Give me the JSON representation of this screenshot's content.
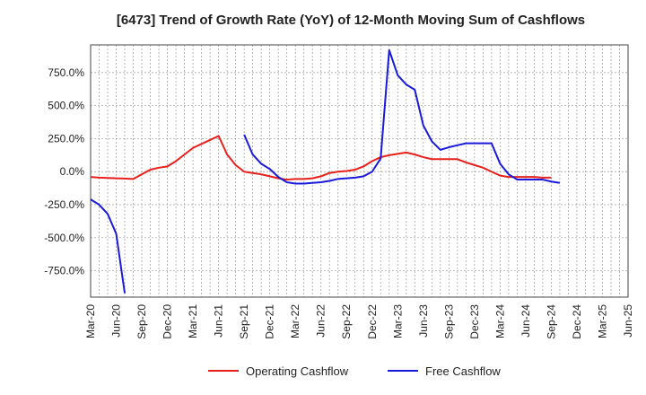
{
  "chart_data": {
    "type": "line",
    "title": "[6473]  Trend of Growth Rate (YoY) of 12-Month Moving Sum of Cashflows",
    "xlabel": "",
    "ylabel": "",
    "x_tick_labels": [
      "Mar-20",
      "Jun-20",
      "Sep-20",
      "Dec-20",
      "Mar-21",
      "Jun-21",
      "Sep-21",
      "Dec-21",
      "Mar-22",
      "Jun-22",
      "Sep-22",
      "Dec-22",
      "Mar-23",
      "Jun-23",
      "Sep-23",
      "Dec-23",
      "Mar-24",
      "Jun-24",
      "Sep-24",
      "Dec-24",
      "Mar-25",
      "Jun-25"
    ],
    "y_ticks": [
      750,
      500,
      250,
      0,
      -250,
      -500,
      -750
    ],
    "y_tick_labels": [
      "750.0%",
      "500.0%",
      "250.0%",
      "0.0%",
      "-250.0%",
      "-500.0%",
      "-750.0%"
    ],
    "ylim": [
      -950,
      960
    ],
    "grid": true,
    "legend_position": "bottom",
    "series": [
      {
        "name": "Operating Cashflow",
        "color": "#e8201c",
        "points": [
          [
            0,
            -40
          ],
          [
            1,
            -45
          ],
          [
            2,
            -48
          ],
          [
            3,
            -50
          ],
          [
            4,
            -52
          ],
          [
            5,
            -55
          ],
          [
            6,
            -20
          ],
          [
            7,
            15
          ],
          [
            8,
            30
          ],
          [
            9,
            40
          ],
          [
            10,
            80
          ],
          [
            11,
            130
          ],
          [
            12,
            180
          ],
          [
            13,
            210
          ],
          [
            14,
            240
          ],
          [
            15,
            270
          ],
          [
            16,
            130
          ],
          [
            17,
            50
          ],
          [
            18,
            0
          ],
          [
            19,
            -10
          ],
          [
            20,
            -20
          ],
          [
            21,
            -35
          ],
          [
            22,
            -50
          ],
          [
            23,
            -60
          ],
          [
            24,
            -55
          ],
          [
            25,
            -55
          ],
          [
            26,
            -50
          ],
          [
            27,
            -35
          ],
          [
            28,
            -10
          ],
          [
            29,
            0
          ],
          [
            30,
            5
          ],
          [
            31,
            15
          ],
          [
            32,
            40
          ],
          [
            33,
            80
          ],
          [
            34,
            110
          ],
          [
            35,
            125
          ],
          [
            36,
            135
          ],
          [
            37,
            145
          ],
          [
            38,
            130
          ],
          [
            39,
            110
          ],
          [
            40,
            95
          ],
          [
            41,
            95
          ],
          [
            42,
            95
          ],
          [
            43,
            95
          ],
          [
            44,
            70
          ],
          [
            45,
            50
          ],
          [
            46,
            30
          ],
          [
            47,
            0
          ],
          [
            48,
            -30
          ],
          [
            49,
            -40
          ],
          [
            50,
            -40
          ],
          [
            51,
            -40
          ],
          [
            52,
            -40
          ],
          [
            53,
            -45
          ],
          [
            54,
            -45
          ]
        ]
      },
      {
        "name": "Free Cashflow",
        "color": "#1a1adb",
        "points": [
          [
            0,
            -210
          ],
          [
            1,
            -250
          ],
          [
            2,
            -320
          ],
          [
            3,
            -470
          ],
          [
            4,
            -920
          ],
          [
            18,
            280
          ],
          [
            19,
            130
          ],
          [
            20,
            60
          ],
          [
            21,
            20
          ],
          [
            22,
            -40
          ],
          [
            23,
            -80
          ],
          [
            24,
            -90
          ],
          [
            25,
            -90
          ],
          [
            26,
            -85
          ],
          [
            27,
            -80
          ],
          [
            28,
            -70
          ],
          [
            29,
            -55
          ],
          [
            30,
            -50
          ],
          [
            31,
            -45
          ],
          [
            32,
            -35
          ],
          [
            33,
            0
          ],
          [
            34,
            100
          ],
          [
            35,
            920
          ],
          [
            36,
            730
          ],
          [
            37,
            660
          ],
          [
            38,
            620
          ],
          [
            39,
            350
          ],
          [
            40,
            230
          ],
          [
            41,
            165
          ],
          [
            42,
            185
          ],
          [
            43,
            200
          ],
          [
            44,
            215
          ],
          [
            45,
            215
          ],
          [
            46,
            215
          ],
          [
            47,
            215
          ],
          [
            48,
            60
          ],
          [
            49,
            -20
          ],
          [
            50,
            -60
          ],
          [
            51,
            -60
          ],
          [
            52,
            -60
          ],
          [
            53,
            -60
          ],
          [
            54,
            -75
          ],
          [
            55,
            -85
          ]
        ]
      }
    ]
  }
}
